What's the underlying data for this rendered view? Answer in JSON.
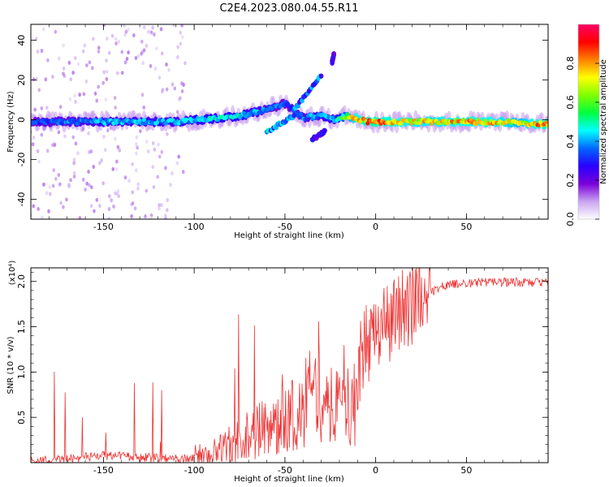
{
  "figure": {
    "title": "C2E4.2023.080.04.55.R11"
  },
  "chart_data": [
    {
      "type": "heatmap",
      "xlabel": "Height of straight line (km)",
      "ylabel": "Frequency (Hz)",
      "xlim": [
        -190,
        95
      ],
      "ylim": [
        -50,
        48
      ],
      "x_ticks": [
        -150,
        -100,
        -50,
        0,
        50
      ],
      "x_tick_labels": [
        "-150",
        "-100",
        "-50",
        "0",
        "50"
      ],
      "y_ticks": [
        -40,
        -20,
        0,
        20,
        40
      ],
      "y_tick_labels": [
        "-40",
        "-20",
        "0",
        "20",
        "40"
      ],
      "colorbar": {
        "label": "Normalized spectral amplitude",
        "range": [
          0,
          1
        ],
        "ticks": [
          0.0,
          0.2,
          0.4,
          0.6,
          0.8
        ],
        "tick_labels": [
          "0.0",
          "0.2",
          "0.4",
          "0.6",
          "0.8"
        ],
        "colormap": [
          "#ffffff",
          "#c9a3f0",
          "#7a00d9",
          "#2a00ff",
          "#0066ff",
          "#00ffff",
          "#00ff40",
          "#80ff00",
          "#ffff00",
          "#ff8000",
          "#ff0000",
          "#ff0066"
        ]
      },
      "ridge": {
        "x": [
          -190,
          -170,
          -150,
          -130,
          -110,
          -90,
          -75,
          -65,
          -58,
          -50,
          -40,
          -30,
          -22,
          -15,
          -10,
          -5,
          0,
          10,
          20,
          30,
          40,
          50,
          60,
          70,
          80,
          88,
          95
        ],
        "freq": [
          -1,
          -1,
          -1,
          -1,
          -1,
          0.5,
          2,
          4,
          6,
          8,
          1,
          2,
          0,
          2,
          0.5,
          -1,
          -1,
          -1,
          -1,
          -1,
          -1,
          -1,
          -1,
          -1,
          -1.5,
          -2,
          -2
        ],
        "amp": [
          0.35,
          0.4,
          0.45,
          0.45,
          0.45,
          0.5,
          0.5,
          0.45,
          0.4,
          0.35,
          0.4,
          0.45,
          0.5,
          0.7,
          0.85,
          0.9,
          0.9,
          0.85,
          0.8,
          0.8,
          0.82,
          0.85,
          0.85,
          0.8,
          0.75,
          0.85,
          0.9
        ]
      },
      "features": [
        {
          "x": [
            -60,
            -45
          ],
          "freq": [
            -6,
            2
          ],
          "amp": 0.45
        },
        {
          "x": [
            -45,
            -30
          ],
          "freq": [
            5,
            22
          ],
          "amp": 0.4
        },
        {
          "x": [
            -35,
            -28
          ],
          "freq": [
            -10,
            -6
          ],
          "amp": 0.3
        },
        {
          "x": [
            -24,
            -23
          ],
          "freq": [
            29,
            33
          ],
          "amp": 0.3
        }
      ]
    },
    {
      "type": "line",
      "xlabel": "Height of straight line (km)",
      "ylabel": "SNR (10 * v/v)",
      "y_multiplier_label": "(x10⁴)",
      "line_color": "#ee3333",
      "xlim": [
        -190,
        95
      ],
      "ylim": [
        0,
        2.15
      ],
      "x_ticks": [
        -150,
        -100,
        -50,
        0,
        50
      ],
      "x_tick_labels": [
        "-150",
        "-100",
        "-50",
        "0",
        "50"
      ],
      "y_ticks": [
        0.5,
        1.0,
        1.5,
        2.0
      ],
      "y_tick_labels": [
        "0.5",
        "1.0",
        "1.5",
        "2.0"
      ],
      "series": [
        {
          "x": [
            -190,
            -170,
            -160,
            -150,
            -140,
            -130,
            -120,
            -110,
            -100,
            -95,
            -90,
            -85,
            -80,
            -75,
            -70,
            -65,
            -60,
            -55,
            -50,
            -45,
            -40,
            -37,
            -35,
            -32,
            -30,
            -25,
            -20,
            -15,
            -12,
            -10,
            -8,
            -5,
            -2,
            0,
            3,
            5,
            8,
            10,
            12,
            15,
            18,
            20,
            25,
            30,
            35,
            40,
            50,
            60,
            70,
            80,
            90,
            95
          ],
          "y": [
            0.02,
            0.04,
            0.06,
            0.08,
            0.07,
            0.06,
            0.05,
            0.04,
            0.06,
            0.08,
            0.12,
            0.15,
            0.2,
            0.25,
            0.3,
            0.35,
            0.38,
            0.4,
            0.45,
            0.55,
            0.5,
            1.0,
            0.6,
            1.1,
            0.5,
            0.6,
            0.6,
            0.7,
            0.5,
            0.9,
            1.2,
            1.35,
            1.3,
            1.35,
            1.4,
            1.5,
            1.55,
            1.6,
            1.65,
            1.68,
            1.72,
            1.75,
            1.82,
            1.88,
            1.93,
            1.97,
            1.98,
            1.99,
            1.99,
            1.99,
            1.99,
            1.98
          ]
        }
      ]
    }
  ]
}
